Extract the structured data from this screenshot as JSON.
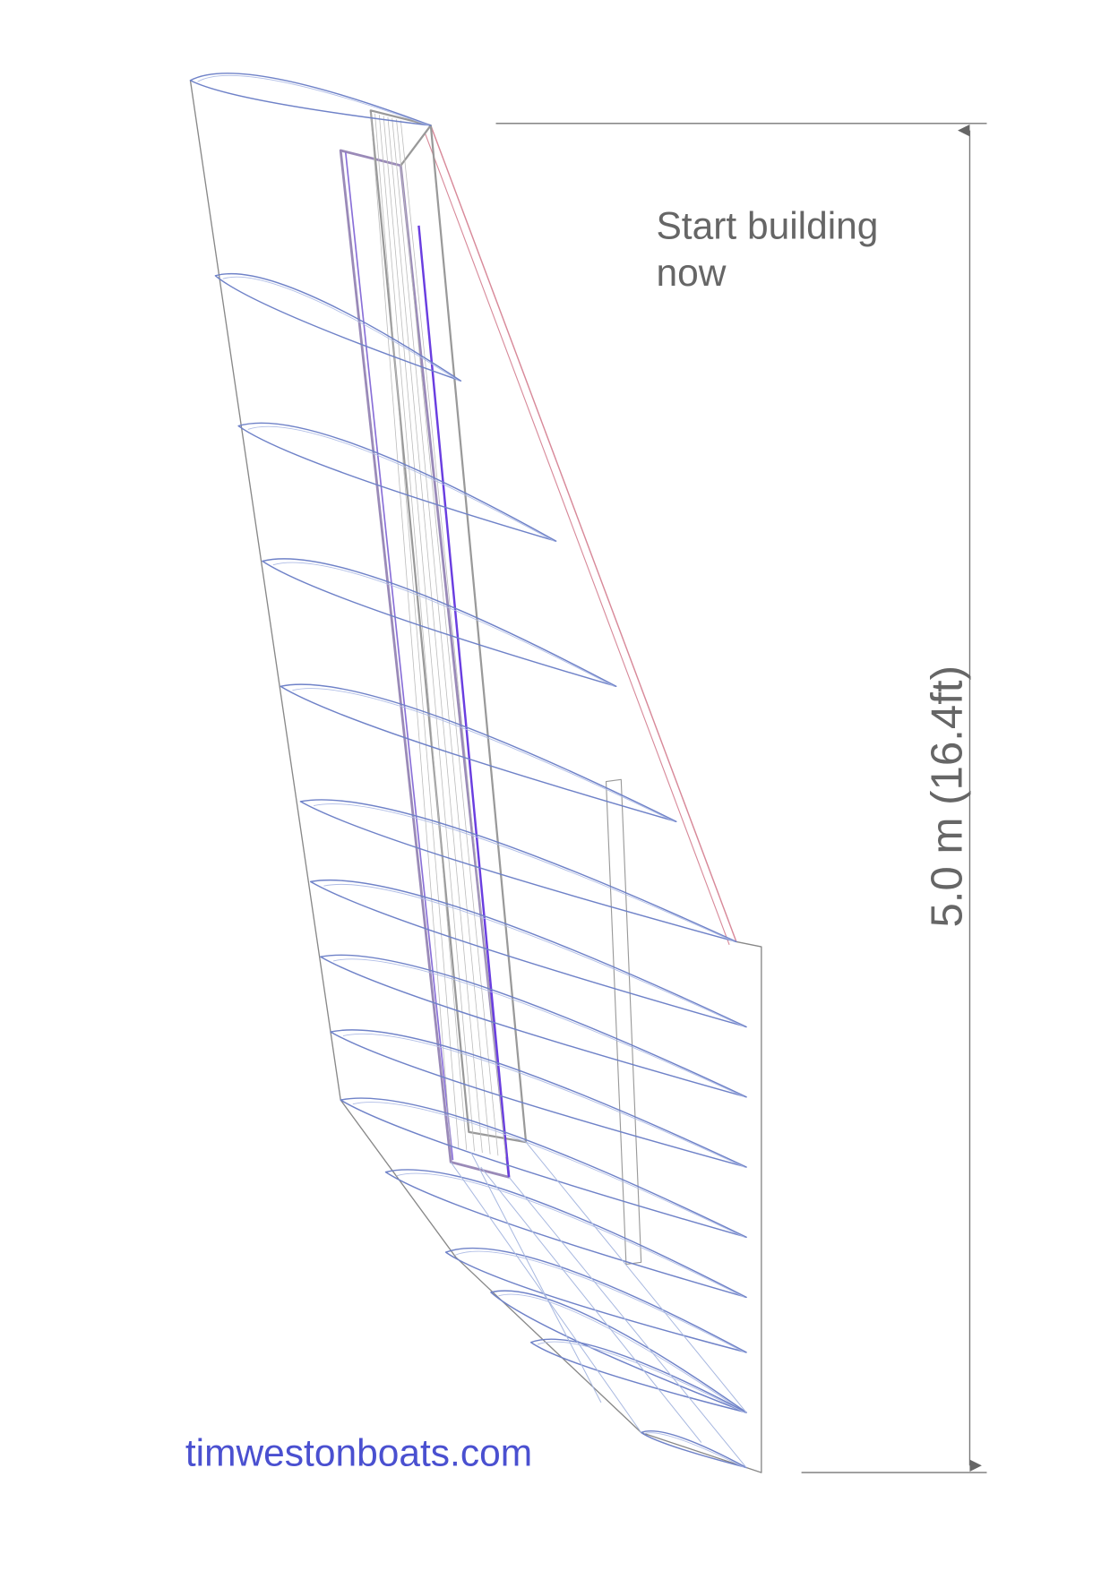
{
  "heading": {
    "lines": [
      "Start building",
      "now"
    ]
  },
  "dimension": {
    "label": "5.0 m (16.4ft)"
  },
  "footer": {
    "url": "timwestonboats.com"
  }
}
